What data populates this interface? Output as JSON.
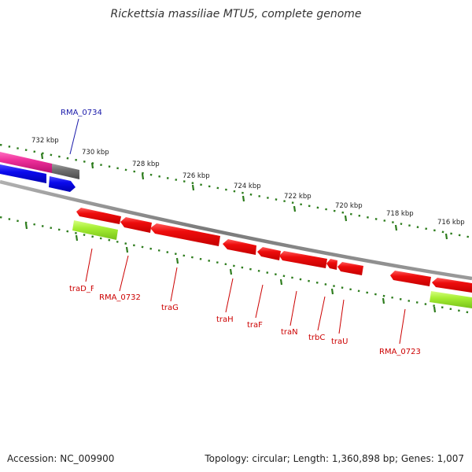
{
  "title": "Rickettsia massiliae MTU5, complete genome",
  "footer": {
    "accession": "Accession: NC_009900",
    "summary": "Topology: circular; Length: 1,360,898 bp; Genes: 1,007"
  },
  "scale_labels": [
    "732 kbp",
    "730 kbp",
    "728 kbp",
    "726 kbp",
    "724 kbp",
    "722 kbp",
    "720 kbp",
    "718 kbp",
    "716 kbp"
  ],
  "gene_labels": {
    "rma0734": "RMA_0734",
    "traD": "traD_F",
    "rma0732": "RMA_0732",
    "traG": "traG",
    "traH": "traH",
    "traF": "traF",
    "traN": "traN",
    "trbC": "trbC",
    "traU": "traU",
    "rma0723": "RMA_0723"
  },
  "colors": {
    "gene_red": "#e8000b",
    "gene_blue": "#0a0aee",
    "gene_pink": "#ee2f9a",
    "gene_gray": "#6f6f6f",
    "gene_green": "#a6ee33",
    "tick_green": "#2e7d1e",
    "label_red": "#cc0000",
    "label_blue": "#1a1aaa"
  }
}
